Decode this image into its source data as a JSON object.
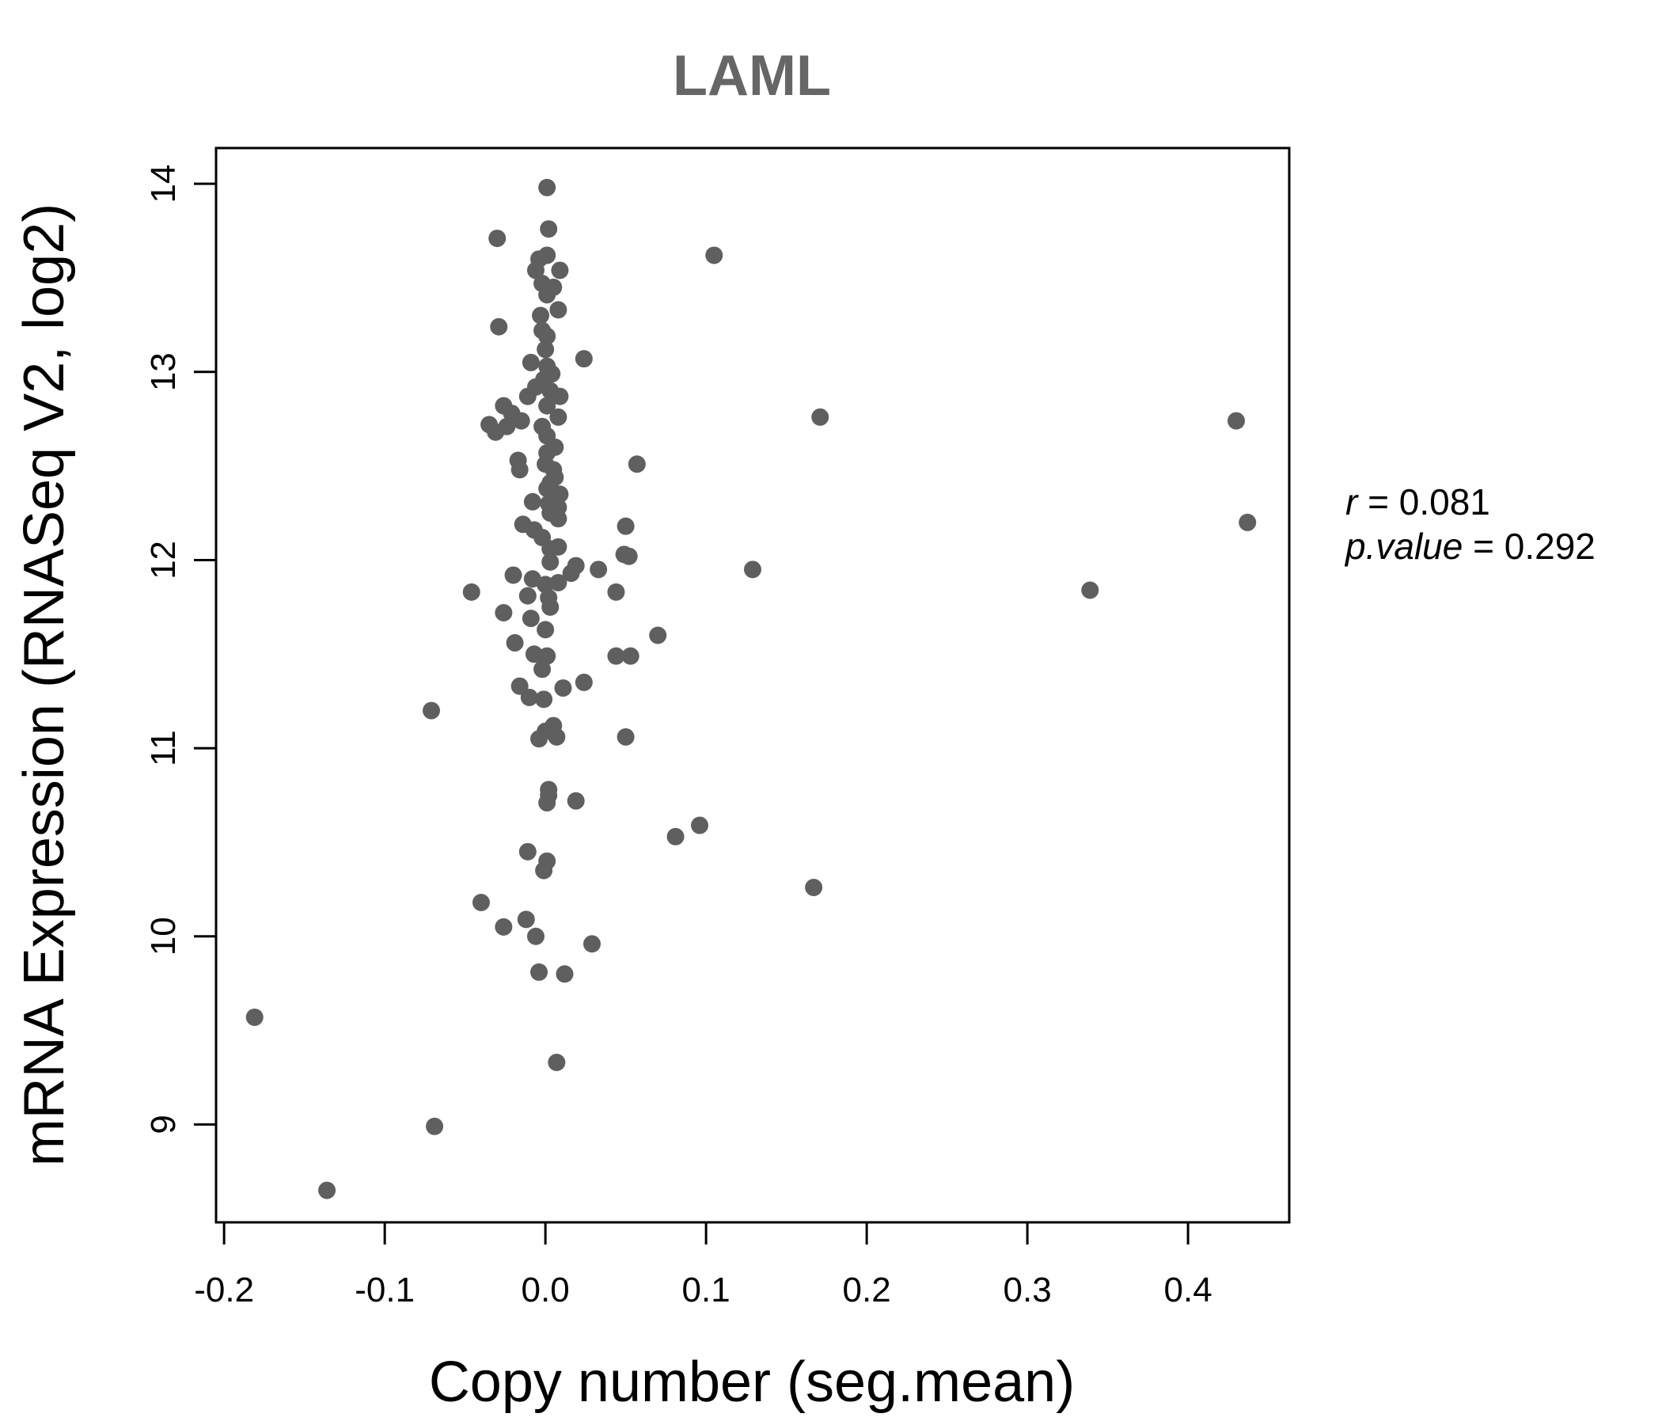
{
  "chart_data": {
    "type": "scatter",
    "title": "LAML",
    "xlabel": "Copy number (seg.mean)",
    "ylabel": "mRNA Expression (RNASeq V2, log2)",
    "xlim": [
      -0.205,
      0.463
    ],
    "ylim": [
      8.48,
      14.19
    ],
    "xticks": [
      -0.2,
      -0.1,
      0.0,
      0.1,
      0.2,
      0.3,
      0.4
    ],
    "xtick_labels": [
      "-0.2",
      "-0.1",
      "0.0",
      "0.1",
      "0.2",
      "0.3",
      "0.4"
    ],
    "yticks": [
      9,
      10,
      11,
      12,
      13,
      14
    ],
    "ytick_labels": [
      "9",
      "10",
      "11",
      "12",
      "13",
      "14"
    ],
    "grid": false,
    "point_color": "#5f5f5f",
    "stats": {
      "r_label": "r",
      "r_value": "0.081",
      "p_label": "p.value",
      "p_value": "0.292"
    },
    "points": [
      {
        "x": 0.001,
        "y": 13.98
      },
      {
        "x": 0.002,
        "y": 13.76
      },
      {
        "x": -0.03,
        "y": 13.71
      },
      {
        "x": 0.105,
        "y": 13.62
      },
      {
        "x": 0.001,
        "y": 13.62
      },
      {
        "x": -0.004,
        "y": 13.6
      },
      {
        "x": -0.006,
        "y": 13.54
      },
      {
        "x": 0.009,
        "y": 13.54
      },
      {
        "x": -0.002,
        "y": 13.47
      },
      {
        "x": 0.005,
        "y": 13.45
      },
      {
        "x": 0.001,
        "y": 13.41
      },
      {
        "x": 0.008,
        "y": 13.33
      },
      {
        "x": -0.003,
        "y": 13.3
      },
      {
        "x": -0.029,
        "y": 13.24
      },
      {
        "x": -0.002,
        "y": 13.22
      },
      {
        "x": 0.001,
        "y": 13.19
      },
      {
        "x": 0.0,
        "y": 13.12
      },
      {
        "x": 0.024,
        "y": 13.07
      },
      {
        "x": -0.009,
        "y": 13.05
      },
      {
        "x": 0.001,
        "y": 13.03
      },
      {
        "x": 0.004,
        "y": 12.99
      },
      {
        "x": -0.001,
        "y": 12.96
      },
      {
        "x": -0.006,
        "y": 12.92
      },
      {
        "x": 0.003,
        "y": 12.9
      },
      {
        "x": -0.011,
        "y": 12.87
      },
      {
        "x": 0.009,
        "y": 12.87
      },
      {
        "x": -0.026,
        "y": 12.82
      },
      {
        "x": 0.001,
        "y": 12.82
      },
      {
        "x": -0.021,
        "y": 12.78
      },
      {
        "x": 0.171,
        "y": 12.76
      },
      {
        "x": 0.008,
        "y": 12.76
      },
      {
        "x": 0.43,
        "y": 12.74
      },
      {
        "x": -0.015,
        "y": 12.74
      },
      {
        "x": -0.035,
        "y": 12.72
      },
      {
        "x": -0.024,
        "y": 12.71
      },
      {
        "x": -0.002,
        "y": 12.71
      },
      {
        "x": -0.031,
        "y": 12.68
      },
      {
        "x": 0.001,
        "y": 12.66
      },
      {
        "x": 0.006,
        "y": 12.6
      },
      {
        "x": 0.001,
        "y": 12.57
      },
      {
        "x": -0.017,
        "y": 12.53
      },
      {
        "x": 0.057,
        "y": 12.51
      },
      {
        "x": 0.0,
        "y": 12.51
      },
      {
        "x": -0.016,
        "y": 12.48
      },
      {
        "x": 0.005,
        "y": 12.48
      },
      {
        "x": 0.006,
        "y": 12.44
      },
      {
        "x": 0.003,
        "y": 12.41
      },
      {
        "x": 0.001,
        "y": 12.38
      },
      {
        "x": 0.009,
        "y": 12.35
      },
      {
        "x": -0.008,
        "y": 12.31
      },
      {
        "x": 0.002,
        "y": 12.3
      },
      {
        "x": 0.008,
        "y": 12.28
      },
      {
        "x": 0.003,
        "y": 12.25
      },
      {
        "x": 0.008,
        "y": 12.22
      },
      {
        "x": 0.437,
        "y": 12.2
      },
      {
        "x": -0.014,
        "y": 12.19
      },
      {
        "x": 0.05,
        "y": 12.18
      },
      {
        "x": -0.007,
        "y": 12.16
      },
      {
        "x": -0.002,
        "y": 12.12
      },
      {
        "x": 0.008,
        "y": 12.07
      },
      {
        "x": 0.003,
        "y": 12.06
      },
      {
        "x": 0.049,
        "y": 12.03
      },
      {
        "x": 0.052,
        "y": 12.02
      },
      {
        "x": 0.003,
        "y": 11.99
      },
      {
        "x": 0.019,
        "y": 11.97
      },
      {
        "x": 0.129,
        "y": 11.95
      },
      {
        "x": 0.033,
        "y": 11.95
      },
      {
        "x": 0.016,
        "y": 11.93
      },
      {
        "x": -0.02,
        "y": 11.92
      },
      {
        "x": -0.008,
        "y": 11.9
      },
      {
        "x": 0.008,
        "y": 11.88
      },
      {
        "x": 0.0,
        "y": 11.87
      },
      {
        "x": 0.339,
        "y": 11.84
      },
      {
        "x": -0.046,
        "y": 11.83
      },
      {
        "x": 0.044,
        "y": 11.83
      },
      {
        "x": -0.011,
        "y": 11.81
      },
      {
        "x": 0.002,
        "y": 11.8
      },
      {
        "x": 0.003,
        "y": 11.75
      },
      {
        "x": -0.026,
        "y": 11.72
      },
      {
        "x": -0.009,
        "y": 11.69
      },
      {
        "x": 0.0,
        "y": 11.63
      },
      {
        "x": 0.07,
        "y": 11.6
      },
      {
        "x": -0.019,
        "y": 11.56
      },
      {
        "x": -0.007,
        "y": 11.5
      },
      {
        "x": 0.001,
        "y": 11.49
      },
      {
        "x": 0.044,
        "y": 11.49
      },
      {
        "x": 0.053,
        "y": 11.49
      },
      {
        "x": -0.002,
        "y": 11.42
      },
      {
        "x": 0.024,
        "y": 11.35
      },
      {
        "x": -0.016,
        "y": 11.33
      },
      {
        "x": 0.011,
        "y": 11.32
      },
      {
        "x": -0.01,
        "y": 11.27
      },
      {
        "x": -0.001,
        "y": 11.26
      },
      {
        "x": -0.071,
        "y": 11.2
      },
      {
        "x": 0.005,
        "y": 11.12
      },
      {
        "x": 0.0,
        "y": 11.09
      },
      {
        "x": 0.007,
        "y": 11.06
      },
      {
        "x": 0.05,
        "y": 11.06
      },
      {
        "x": -0.004,
        "y": 11.05
      },
      {
        "x": 0.002,
        "y": 10.78
      },
      {
        "x": 0.002,
        "y": 10.75
      },
      {
        "x": 0.019,
        "y": 10.72
      },
      {
        "x": 0.001,
        "y": 10.71
      },
      {
        "x": 0.096,
        "y": 10.59
      },
      {
        "x": 0.081,
        "y": 10.53
      },
      {
        "x": -0.011,
        "y": 10.45
      },
      {
        "x": 0.001,
        "y": 10.4
      },
      {
        "x": -0.001,
        "y": 10.35
      },
      {
        "x": 0.167,
        "y": 10.26
      },
      {
        "x": -0.04,
        "y": 10.18
      },
      {
        "x": -0.012,
        "y": 10.09
      },
      {
        "x": -0.026,
        "y": 10.05
      },
      {
        "x": -0.006,
        "y": 10.0
      },
      {
        "x": 0.029,
        "y": 9.96
      },
      {
        "x": -0.004,
        "y": 9.81
      },
      {
        "x": 0.012,
        "y": 9.8
      },
      {
        "x": -0.181,
        "y": 9.57
      },
      {
        "x": 0.007,
        "y": 9.33
      },
      {
        "x": -0.069,
        "y": 8.99
      },
      {
        "x": -0.136,
        "y": 8.65
      }
    ]
  }
}
